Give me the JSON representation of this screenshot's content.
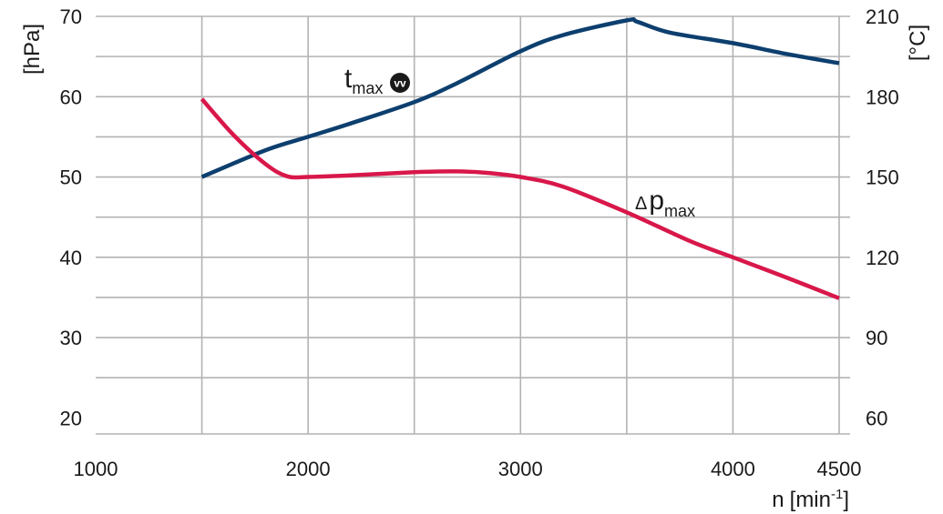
{
  "chart_data": {
    "type": "line",
    "x_unit": {
      "base": "n",
      "bracket_open": "[",
      "text": "min",
      "superscript": "-1",
      "bracket_close": "]"
    },
    "y_left_unit": "[hPa]",
    "y_right_unit": "[°C]",
    "xlim": [
      1000,
      4500
    ],
    "ylim_left": [
      18,
      70
    ],
    "ylim_right": [
      54,
      210
    ],
    "x_ticks": [
      1000,
      2000,
      3000,
      4000,
      4500
    ],
    "y_left_ticks": [
      20,
      30,
      40,
      50,
      60,
      70
    ],
    "y_right_ticks": [
      60,
      90,
      120,
      150,
      180,
      210
    ],
    "x_gridlines": [
      1500,
      2000,
      2500,
      3000,
      3500,
      4000,
      4500
    ],
    "y_gridlines": [
      25,
      30,
      35,
      40,
      45,
      50,
      55,
      60,
      65,
      70
    ],
    "grid": true,
    "colors": {
      "t_max": "#0d3f6e",
      "dp_max": "#d8174a",
      "grid": "#b3b3b3",
      "text": "#1a1a1a"
    },
    "series": [
      {
        "id": "t_max",
        "name": "t",
        "subscript": "max",
        "badge": "vv",
        "axis": "right",
        "x": [
          1500,
          1800,
          2000,
          2200,
          2500,
          2700,
          3000,
          3200,
          3500,
          3550,
          3700,
          4000,
          4250,
          4500
        ],
        "y": [
          150,
          160,
          165,
          170,
          178,
          185,
          197,
          203,
          208.5,
          208,
          204,
          200,
          196,
          192.5
        ]
      },
      {
        "id": "dp_max",
        "name": "Δp",
        "subscript": "max",
        "axis": "left",
        "x": [
          1500,
          1650,
          1800,
          1900,
          2000,
          2200,
          2500,
          2700,
          2850,
          3000,
          3200,
          3500,
          3800,
          4000,
          4250,
          4500
        ],
        "y": [
          59.7,
          55.2,
          51.6,
          50.1,
          50,
          50.2,
          50.6,
          50.7,
          50.5,
          50,
          48.8,
          45.6,
          42,
          40,
          37.5,
          34.9
        ]
      }
    ]
  }
}
